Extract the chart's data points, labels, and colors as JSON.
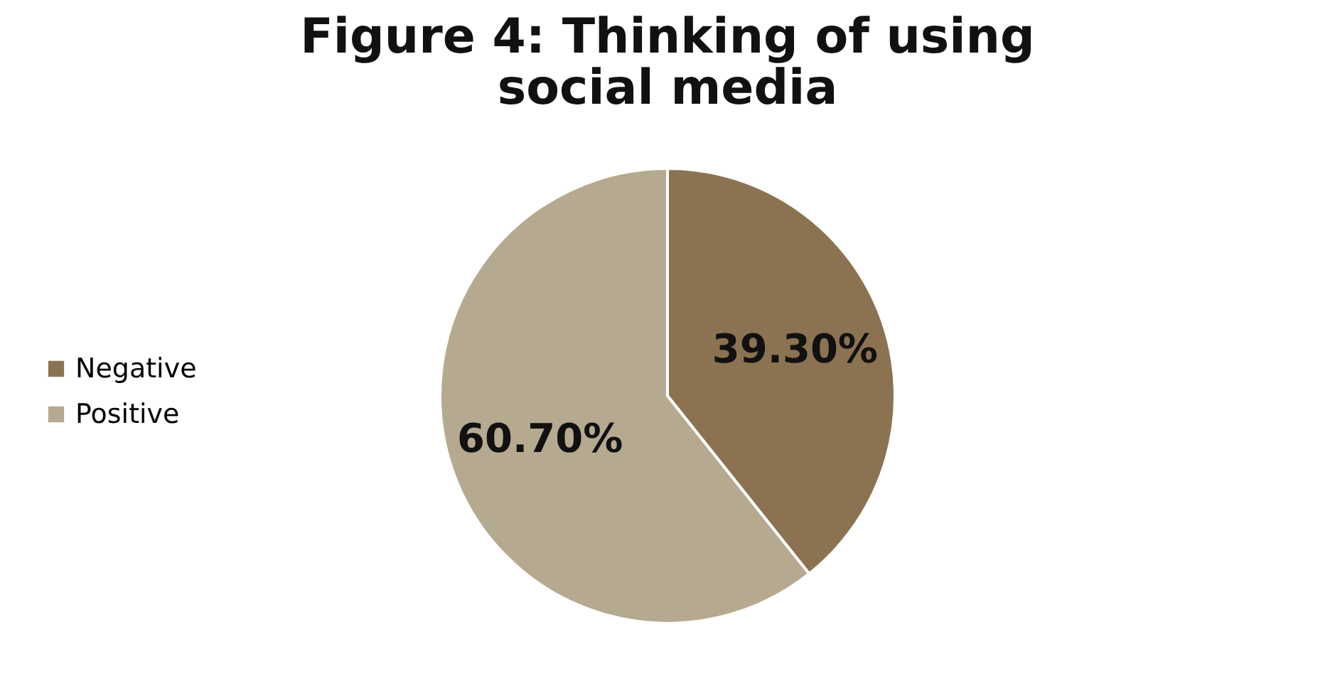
{
  "chart_data": {
    "type": "pie",
    "title": "Figure 4: Thinking of using social media",
    "categories": [
      "Negative",
      "Positive"
    ],
    "values": [
      39.3,
      60.7
    ],
    "colors": [
      "#8b7352",
      "#b5aa90"
    ],
    "value_labels": [
      "39.30%",
      "60.70%"
    ],
    "legend": "left"
  }
}
